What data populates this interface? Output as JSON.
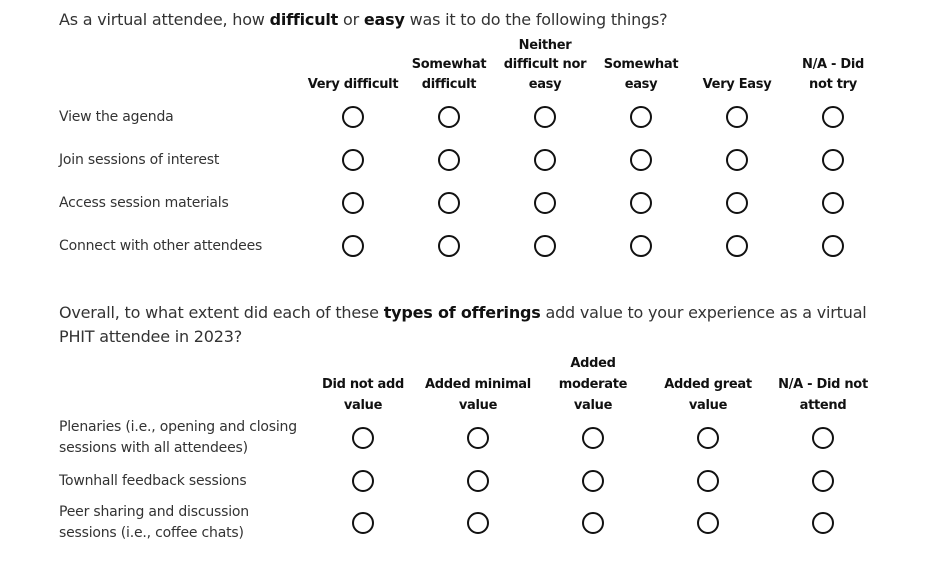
{
  "questions": [
    {
      "title": [
        {
          "t": "As a virtual attendee, how "
        },
        {
          "t": "difficult",
          "b": true
        },
        {
          "t": " or "
        },
        {
          "t": "easy",
          "b": true
        },
        {
          "t": " was it to do the following things?"
        }
      ],
      "columns": [
        "Very difficult",
        "Somewhat difficult",
        "Neither difficult nor easy",
        "Somewhat easy",
        "Very Easy",
        "N/A - Did not try"
      ],
      "rows": [
        "View the agenda",
        "Join sessions of interest",
        "Access session materials",
        "Connect with other attendees"
      ]
    },
    {
      "title": [
        {
          "t": "Overall, to what extent did each of these "
        },
        {
          "t": "types of offerings",
          "b": true
        },
        {
          "t": " add value to your experience as a virtual PHIT attendee in 2023?"
        }
      ],
      "columns": [
        "Did not add value",
        "Added minimal value",
        "Added moderate value",
        "Added great value",
        "N/A - Did not attend"
      ],
      "rows": [
        "Plenaries (i.e., opening and closing sessions with all attendees)",
        "Townhall feedback sessions",
        "Peer sharing and discussion sessions (i.e., coffee chats)"
      ]
    }
  ]
}
